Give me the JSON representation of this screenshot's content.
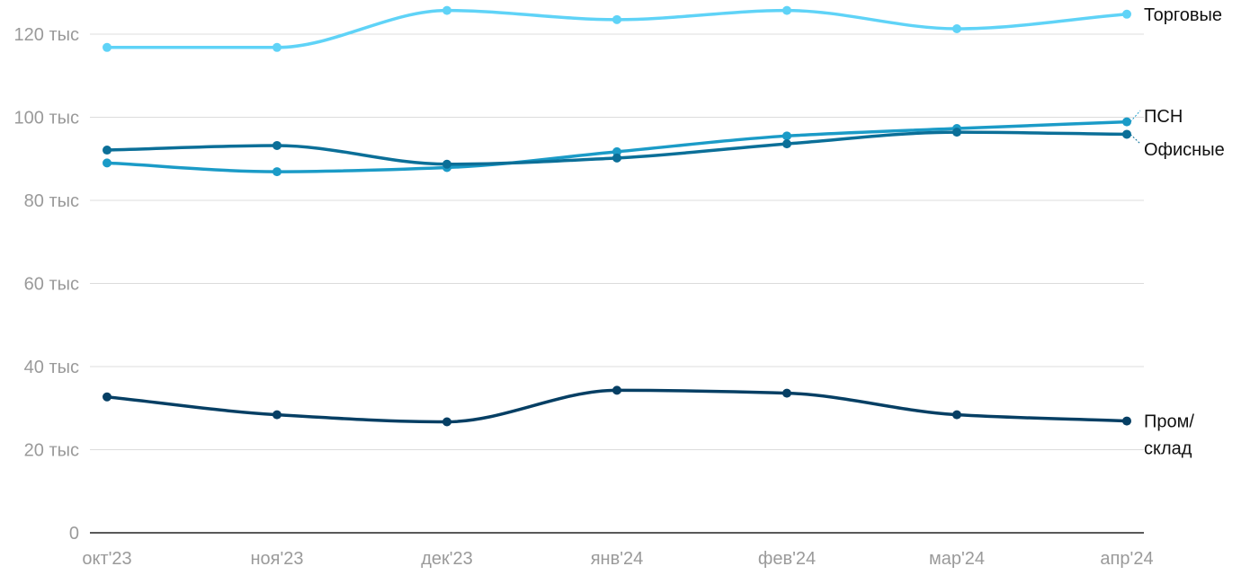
{
  "chart_data": {
    "type": "line",
    "title": "",
    "xlabel": "",
    "ylabel": "",
    "categories": [
      "окт'23",
      "ноя'23",
      "дек'23",
      "янв'24",
      "фев'24",
      "мар'24",
      "апр'24"
    ],
    "ylim": [
      0,
      120000
    ],
    "y_ticks": [
      {
        "value": 0,
        "label": "0"
      },
      {
        "value": 20000,
        "label": "20 тыс"
      },
      {
        "value": 40000,
        "label": "40 тыс"
      },
      {
        "value": 60000,
        "label": "60 тыс"
      },
      {
        "value": 80000,
        "label": "80 тыс"
      },
      {
        "value": 100000,
        "label": "100 тыс"
      },
      {
        "value": 120000,
        "label": "120 тыс"
      }
    ],
    "grid": true,
    "legend": "direct labels at right end of lines",
    "series": [
      {
        "name": "Торговые",
        "color": "#5fd3f7",
        "values": [
          116800,
          116800,
          125700,
          123500,
          125700,
          121300,
          124800
        ]
      },
      {
        "name": "ПСН",
        "color": "#1b9bc7",
        "values": [
          89000,
          86900,
          87900,
          91700,
          95500,
          97300,
          98900
        ]
      },
      {
        "name": "Офисные",
        "color": "#0b6f98",
        "values": [
          92100,
          93200,
          88700,
          90200,
          93600,
          96400,
          95900
        ]
      },
      {
        "name": "Пром/ склад",
        "label_lines": [
          "Пром/",
          "склад"
        ],
        "color": "#063f64",
        "values": [
          32700,
          28400,
          26700,
          34300,
          33600,
          28400,
          26900
        ]
      }
    ]
  }
}
